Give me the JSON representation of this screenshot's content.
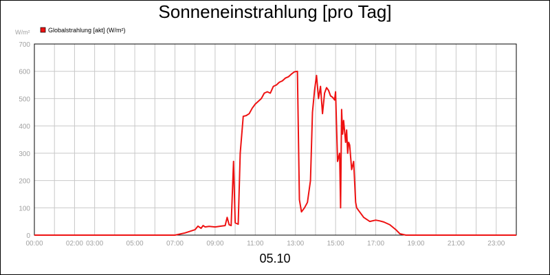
{
  "chart_data": {
    "type": "line",
    "title": "Sonneneinstrahlung [pro Tag]",
    "xlabel": "05.10",
    "ylabel": "W/m²",
    "xlim": [
      0,
      24
    ],
    "ylim": [
      0,
      700
    ],
    "yticks": [
      0,
      100,
      200,
      300,
      400,
      500,
      600,
      700
    ],
    "xtick_labels": [
      "00:00",
      "02:00",
      "03:00",
      "05:00",
      "07:00",
      "09:00",
      "11:00",
      "13:00",
      "15:00",
      "17:00",
      "19:00",
      "21:00",
      "23:00"
    ],
    "grid": true,
    "legend_position": "top-left",
    "colors": {
      "line": "#ee1111",
      "grid": "#c8c8c8",
      "axis": "#000000",
      "tick_text": "#a0a0a0"
    },
    "series": [
      {
        "name": "Globalstrahlung [akt] (W/m²)",
        "x": [
          0,
          7.0,
          7.5,
          8.0,
          8.15,
          8.3,
          8.4,
          8.5,
          8.7,
          9.0,
          9.3,
          9.5,
          9.6,
          9.7,
          9.8,
          9.92,
          10.0,
          10.15,
          10.25,
          10.4,
          10.55,
          10.7,
          10.85,
          11.0,
          11.15,
          11.3,
          11.45,
          11.6,
          11.75,
          11.9,
          12.05,
          12.2,
          12.35,
          12.5,
          12.65,
          12.8,
          12.95,
          13.1,
          13.2,
          13.3,
          13.35,
          13.45,
          13.6,
          13.75,
          13.85,
          13.95,
          14.05,
          14.15,
          14.25,
          14.35,
          14.45,
          14.55,
          14.65,
          14.75,
          14.85,
          14.95,
          15.0,
          15.1,
          15.2,
          15.25,
          15.3,
          15.35,
          15.4,
          15.5,
          15.55,
          15.6,
          15.65,
          15.7,
          15.8,
          15.9,
          16.0,
          16.05,
          16.1,
          16.15,
          16.25,
          16.4,
          16.7,
          17.0,
          17.2,
          17.4,
          17.7,
          18.0,
          18.2,
          18.5,
          19.0,
          19.3,
          19.5,
          24.0
        ],
        "y": [
          0,
          0,
          8,
          20,
          33,
          25,
          35,
          30,
          32,
          30,
          33,
          35,
          65,
          38,
          35,
          270,
          45,
          40,
          300,
          435,
          438,
          445,
          465,
          480,
          490,
          500,
          520,
          525,
          520,
          545,
          550,
          560,
          565,
          575,
          580,
          590,
          598,
          600,
          130,
          85,
          90,
          100,
          120,
          200,
          450,
          530,
          585,
          500,
          545,
          445,
          520,
          540,
          530,
          510,
          505,
          495,
          525,
          270,
          300,
          100,
          460,
          370,
          420,
          340,
          385,
          300,
          340,
          330,
          240,
          270,
          120,
          100,
          95,
          90,
          80,
          65,
          50,
          55,
          52,
          48,
          38,
          20,
          5,
          0,
          0,
          0,
          0,
          0
        ]
      }
    ]
  }
}
